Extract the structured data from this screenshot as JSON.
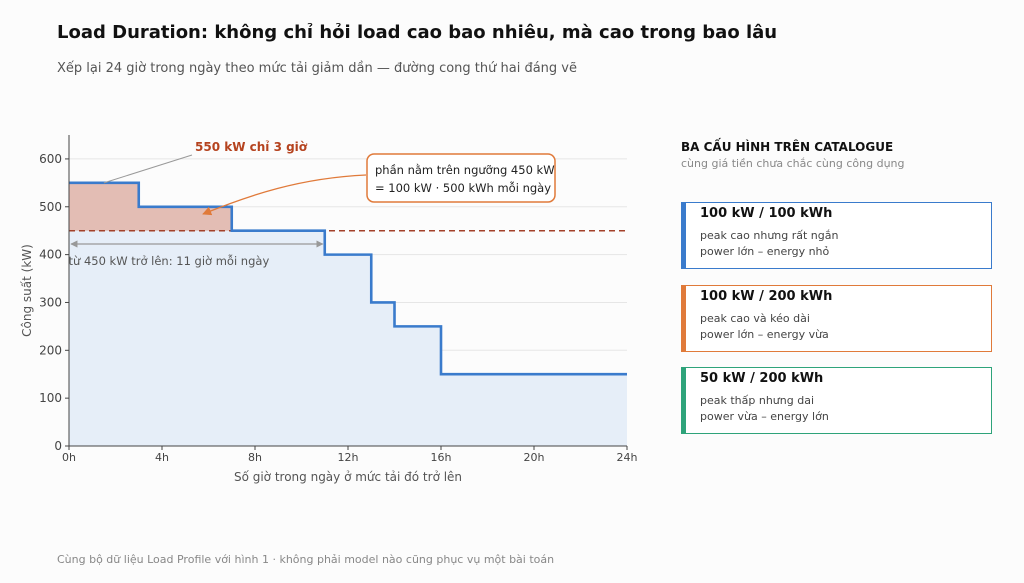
{
  "header": {
    "title": "Load Duration: không chỉ hỏi load cao bao nhiêu, mà cao trong bao lâu",
    "subtitle": "Xếp lại 24 giờ trong ngày theo mức tải giảm dần — đường cong thứ hai đáng vẽ"
  },
  "chart_data": {
    "type": "line",
    "step": true,
    "xlabel": "Số giờ trong ngày ở mức tải đó trở lên",
    "ylabel": "Công suất (kW)",
    "xlim": [
      0,
      24
    ],
    "ylim": [
      0,
      650
    ],
    "x_ticks": [
      0,
      4,
      8,
      12,
      16,
      20,
      24
    ],
    "x_tick_labels": [
      "0h",
      "4h",
      "8h",
      "12h",
      "16h",
      "20h",
      "24h"
    ],
    "y_ticks": [
      0,
      100,
      200,
      300,
      400,
      500,
      600
    ],
    "y_tick_labels": [
      "0",
      "100",
      "200",
      "300",
      "400",
      "500",
      "600"
    ],
    "grid": "horizontal",
    "series": [
      {
        "color": "#3a7bcc",
        "fill": "#e6eef8",
        "x": [
          0,
          3,
          3,
          7,
          7,
          11,
          11,
          13,
          13,
          14,
          14,
          16,
          16,
          24
        ],
        "y": [
          550,
          550,
          500,
          500,
          450,
          450,
          400,
          400,
          300,
          300,
          250,
          250,
          150,
          150
        ]
      }
    ],
    "threshold": {
      "y": 450,
      "color": "#a3412a"
    },
    "excess_fill_color": "#e2b4a8",
    "annotations": {
      "peak_label": "550 kW chỉ 3 giờ",
      "peak_label_color": "#b5431f",
      "duration_label": "từ 450 kW trở lên: 11 giờ mỗi ngày",
      "duration_range": [
        0,
        11
      ],
      "callout_line1": "phần nằm trên ngưỡng 450 kW",
      "callout_line2": "= 100 kW · 500 kWh mỗi ngày",
      "callout_color": "#e07a3a"
    }
  },
  "panel": {
    "title": "BA CẤU HÌNH TRÊN CATALOGUE",
    "subtitle": "cùng giá tiền chưa chắc cùng công dụng",
    "cards": [
      {
        "title": "100 kW / 100 kWh",
        "line1": "peak cao nhưng rất ngắn",
        "line2": "power lớn – energy nhỏ",
        "color": "#3a7bcc"
      },
      {
        "title": "100 kW / 200 kWh",
        "line1": "peak cao và kéo dài",
        "line2": "power lớn – energy vừa",
        "color": "#e07a3a"
      },
      {
        "title": "50 kW / 200 kWh",
        "line1": "peak thấp nhưng dai",
        "line2": "power vừa – energy lớn",
        "color": "#2ea37a"
      }
    ]
  },
  "footer": "Cùng bộ dữ liệu Load Profile với hình 1 · không phải model nào cũng phục vụ một bài toán"
}
